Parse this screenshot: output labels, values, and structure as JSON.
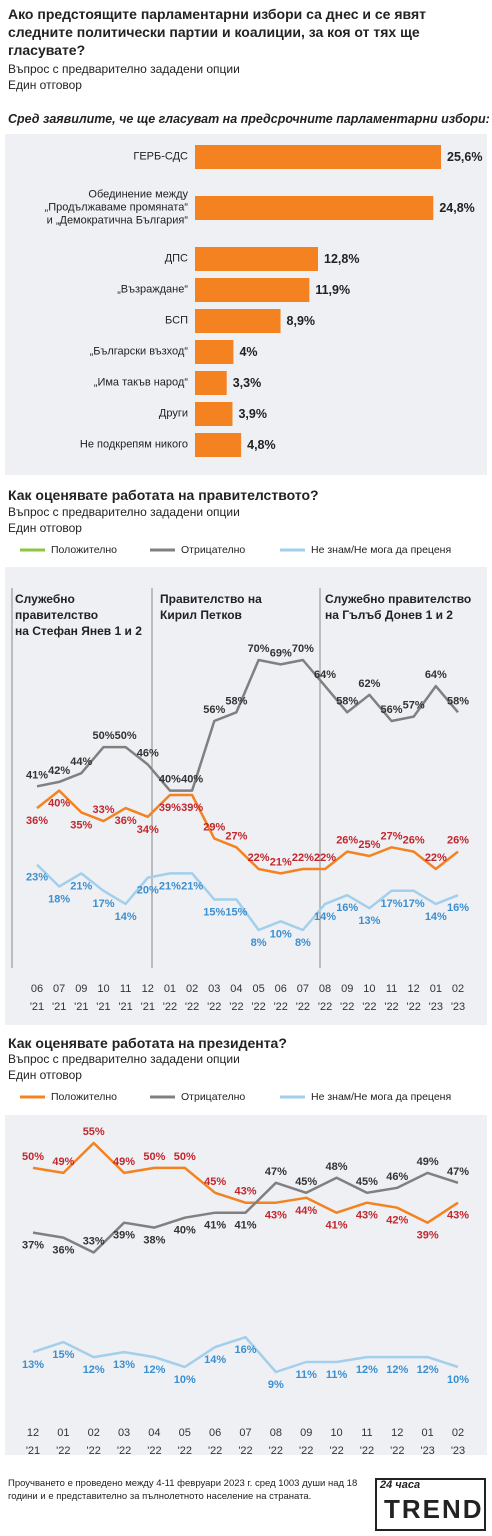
{
  "chart_data": [
    {
      "type": "bar",
      "title": "Ако предстоящите парламентарни избори са днес и се явят следните политически партии и коалиции, за коя от тях ще гласувате?",
      "subtitle": [
        "Въпрос с предварително зададени опции",
        "Един отговор"
      ],
      "caption": "Сред заявилите, че ще гласуват на предсрочните парламентарни избори:",
      "categories": [
        "ГЕРБ-СДС",
        "Обединение между\n„Продължаваме промяната“\nи „Демократична България“",
        "ДПС",
        "„Възраждане“",
        "БСП",
        "„Български възход“",
        "„Има такъв народ“",
        "Други",
        "Не подкрепям никого"
      ],
      "values": [
        25.6,
        24.8,
        12.8,
        11.9,
        8.9,
        4,
        3.3,
        3.9,
        4.8
      ],
      "value_labels": [
        "25,6%",
        "24,8%",
        "12,8%",
        "11,9%",
        "8,9%",
        "4%",
        "3,3%",
        "3,9%",
        "4,8%"
      ],
      "color": "#f58220"
    },
    {
      "type": "line",
      "title": "Как оценявате работата на правителството?",
      "subtitle": [
        "Въпрос с предварително зададени опции",
        "Един отговор"
      ],
      "annotations": [
        "Служебно\nправителство\nна Стефан Янев 1 и 2",
        "Правителство на\nКирил Петков",
        "Служебно правителство\nна Гълъб Донев 1 и 2"
      ],
      "categories": [
        [
          "06",
          "'21"
        ],
        [
          "07",
          "'21"
        ],
        [
          "09",
          "'21"
        ],
        [
          "10",
          "'21"
        ],
        [
          "11",
          "'21"
        ],
        [
          "12",
          "'21"
        ],
        [
          "01",
          "'22"
        ],
        [
          "02",
          "'22"
        ],
        [
          "03",
          "'22"
        ],
        [
          "04",
          "'22"
        ],
        [
          "05",
          "'22"
        ],
        [
          "06",
          "'22"
        ],
        [
          "07",
          "'22"
        ],
        [
          "08",
          "'22"
        ],
        [
          "09",
          "'22"
        ],
        [
          "10",
          "'22"
        ],
        [
          "11",
          "'22"
        ],
        [
          "12",
          "'22"
        ],
        [
          "01",
          "'23"
        ],
        [
          "02",
          "'23"
        ]
      ],
      "series": [
        {
          "name": "Положително",
          "color": "#f58220",
          "legend_color": "#8dc63f",
          "label_color": "#c1272d",
          "values": [
            36,
            40,
            35,
            33,
            36,
            34,
            39,
            39,
            29,
            27,
            22,
            21,
            22,
            22,
            26,
            25,
            27,
            26,
            22,
            26
          ],
          "value_labels": [
            "36%",
            "40%",
            "35%",
            "33%",
            "36%",
            "34%",
            "39%",
            "39%",
            "29%",
            "27%",
            "22%",
            "21%",
            "22%",
            "22%",
            "26%",
            "25%",
            "27%",
            "26%",
            "22%",
            "26%"
          ]
        },
        {
          "name": "Отрицателно",
          "color": "#808080",
          "label_color": "#333333",
          "values": [
            41,
            42,
            44,
            50,
            50,
            46,
            40,
            40,
            56,
            58,
            70,
            69,
            70,
            64,
            58,
            62,
            56,
            57,
            64,
            58
          ],
          "value_labels": [
            "41%",
            "42%",
            "44%",
            "50%",
            "50%",
            "46%",
            "40%",
            "40%",
            "56%",
            "58%",
            "70%",
            "69%",
            "70%",
            "64%",
            "58%",
            "62%",
            "56%",
            "57%",
            "64%",
            "58%"
          ]
        },
        {
          "name": "Не знам/Не мога да преценя",
          "color": "#a3cfec",
          "label_color": "#3b8fd0",
          "values": [
            23,
            18,
            21,
            17,
            14,
            20,
            21,
            21,
            15,
            15,
            8,
            10,
            8,
            14,
            16,
            13,
            17,
            17,
            14,
            16
          ],
          "value_labels": [
            "23%",
            "18%",
            "21%",
            "17%",
            "14%",
            "20%",
            "21%",
            "21%",
            "15%",
            "15%",
            "8%",
            "10%",
            "8%",
            "14%",
            "16%",
            "13%",
            "17%",
            "17%",
            "14%",
            "16%"
          ]
        }
      ]
    },
    {
      "type": "line",
      "title": "Как оценявате работата на президента?",
      "subtitle": [
        "Въпрос с предварително зададени опции",
        "Един отговор"
      ],
      "categories": [
        [
          "12",
          "'21"
        ],
        [
          "01",
          "'22"
        ],
        [
          "02",
          "'22"
        ],
        [
          "03",
          "'22"
        ],
        [
          "04",
          "'22"
        ],
        [
          "05",
          "'22"
        ],
        [
          "06",
          "'22"
        ],
        [
          "07",
          "'22"
        ],
        [
          "08",
          "'22"
        ],
        [
          "09",
          "'22"
        ],
        [
          "10",
          "'22"
        ],
        [
          "11",
          "'22"
        ],
        [
          "12",
          "'22"
        ],
        [
          "01",
          "'23"
        ],
        [
          "02",
          "'23"
        ]
      ],
      "series": [
        {
          "name": "Положително",
          "color": "#f58220",
          "label_color": "#c1272d",
          "values": [
            50,
            49,
            55,
            49,
            50,
            50,
            45,
            43,
            43,
            44,
            41,
            43,
            42,
            39,
            43
          ],
          "value_labels": [
            "50%",
            "49%",
            "55%",
            "49%",
            "50%",
            "50%",
            "45%",
            "43%",
            "43%",
            "44%",
            "41%",
            "43%",
            "42%",
            "39%",
            "43%"
          ]
        },
        {
          "name": "Отрицателно",
          "color": "#808080",
          "label_color": "#333333",
          "values": [
            37,
            36,
            33,
            39,
            38,
            40,
            41,
            41,
            47,
            45,
            48,
            45,
            46,
            49,
            47
          ],
          "value_labels": [
            "37%",
            "36%",
            "33%",
            "39%",
            "38%",
            "40%",
            "41%",
            "41%",
            "47%",
            "45%",
            "48%",
            "45%",
            "46%",
            "49%",
            "47%"
          ]
        },
        {
          "name": "Не знам/Не мога да преценя",
          "color": "#a3cfec",
          "label_color": "#3b8fd0",
          "values": [
            13,
            15,
            12,
            13,
            12,
            10,
            14,
            16,
            9,
            11,
            11,
            12,
            12,
            12,
            10
          ],
          "value_labels": [
            "13%",
            "15%",
            "12%",
            "13%",
            "12%",
            "10%",
            "14%",
            "16%",
            "9%",
            "11%",
            "11%",
            "12%",
            "12%",
            "12%",
            "10%"
          ]
        }
      ]
    }
  ],
  "footer": "Проучването е проведено между 4-11 февруари 2023 г. сред 1003 души над 18 години и е представително за пълнолетното население на страната.",
  "logo": {
    "top": "24 часа",
    "name": "TREND"
  }
}
